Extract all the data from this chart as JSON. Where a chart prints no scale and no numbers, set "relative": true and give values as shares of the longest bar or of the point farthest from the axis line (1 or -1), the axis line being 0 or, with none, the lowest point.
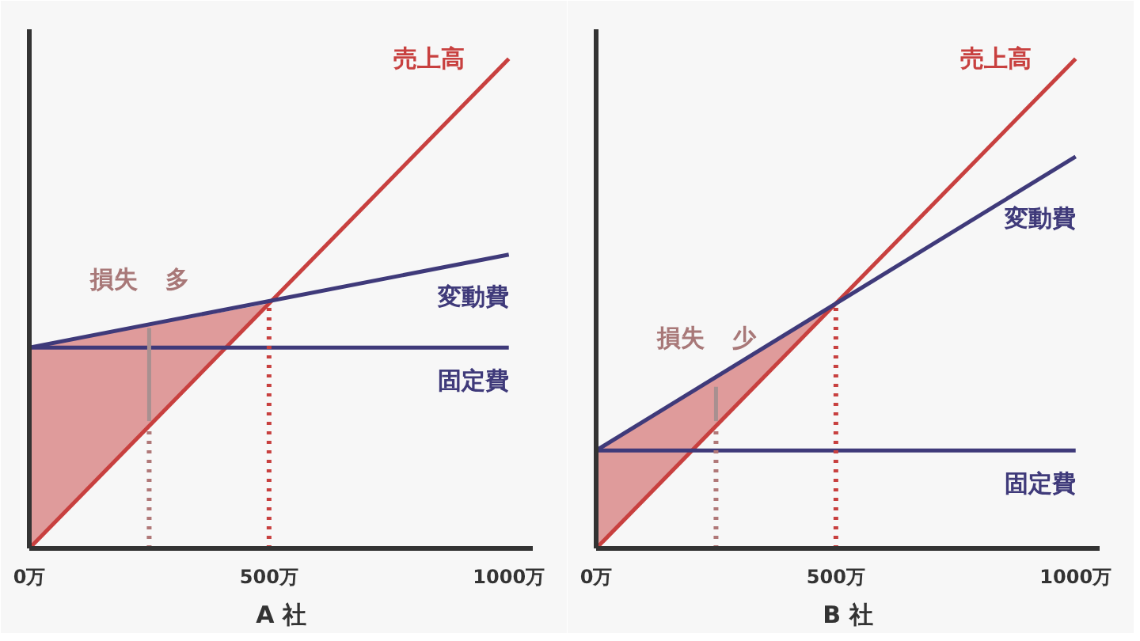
{
  "chart_data": [
    {
      "type": "line",
      "relative": true,
      "xlabel": "A 社",
      "xlim": [
        0,
        1050
      ],
      "xticks": [
        {
          "value": 0,
          "label": "0万"
        },
        {
          "value": 500,
          "label": "500万"
        },
        {
          "value": 1000,
          "label": "1000万"
        }
      ],
      "tick_labels": "x",
      "grid": false,
      "legend": false,
      "marker": "none",
      "series": [
        {
          "name": "売上高",
          "color": "#c8403f",
          "x": [
            0,
            500,
            1000
          ],
          "values": [
            0,
            0.5,
            1.0
          ],
          "lower": [
            0,
            0.5,
            null
          ],
          "upper": [
            0.41,
            0.5,
            null
          ]
        },
        {
          "name": "変動費",
          "color": "#3f3a7a",
          "x": [
            0,
            1000
          ],
          "values": [
            0.41,
            0.6
          ]
        },
        {
          "name": "固定費",
          "color": "#3f3a7a",
          "x": [
            0,
            1000
          ],
          "values": [
            0.41,
            0.41
          ]
        },
        {
          "color": "#c8403f",
          "x": [
            500,
            500
          ],
          "values": [
            0,
            0.5
          ],
          "line_style": "dotted"
        },
        {
          "color": "#b07878",
          "x": [
            250,
            250
          ],
          "values": [
            0,
            0.25
          ],
          "line_style": "dotted"
        },
        {
          "color": "#a89090",
          "x": [
            250,
            250
          ],
          "values": [
            0.26,
            0.45
          ]
        }
      ],
      "annotations": [
        "損失",
        "多"
      ]
    },
    {
      "type": "line",
      "relative": true,
      "xlabel": "B 社",
      "xlim": [
        0,
        1050
      ],
      "xticks": [
        {
          "value": 0,
          "label": "0万"
        },
        {
          "value": 500,
          "label": "500万"
        },
        {
          "value": 1000,
          "label": "1000万"
        }
      ],
      "tick_labels": "x",
      "grid": false,
      "legend": false,
      "marker": "none",
      "series": [
        {
          "name": "売上高",
          "color": "#c8403f",
          "x": [
            0,
            500,
            1000
          ],
          "values": [
            0,
            0.5,
            1.0
          ],
          "lower": [
            0,
            0.5,
            null
          ],
          "upper": [
            0.2,
            0.5,
            null
          ]
        },
        {
          "name": "変動費",
          "color": "#3f3a7a",
          "x": [
            0,
            1000
          ],
          "values": [
            0.2,
            0.8
          ]
        },
        {
          "name": "固定費",
          "color": "#3f3a7a",
          "x": [
            0,
            1000
          ],
          "values": [
            0.2,
            0.2
          ]
        },
        {
          "color": "#c8403f",
          "x": [
            500,
            500
          ],
          "values": [
            0,
            0.5
          ],
          "line_style": "dotted"
        },
        {
          "color": "#b07878",
          "x": [
            250,
            250
          ],
          "values": [
            0,
            0.25
          ],
          "line_style": "dotted"
        },
        {
          "color": "#a89090",
          "x": [
            250,
            250
          ],
          "values": [
            0.26,
            0.33
          ]
        }
      ],
      "annotations": [
        "損失",
        "少"
      ]
    }
  ]
}
